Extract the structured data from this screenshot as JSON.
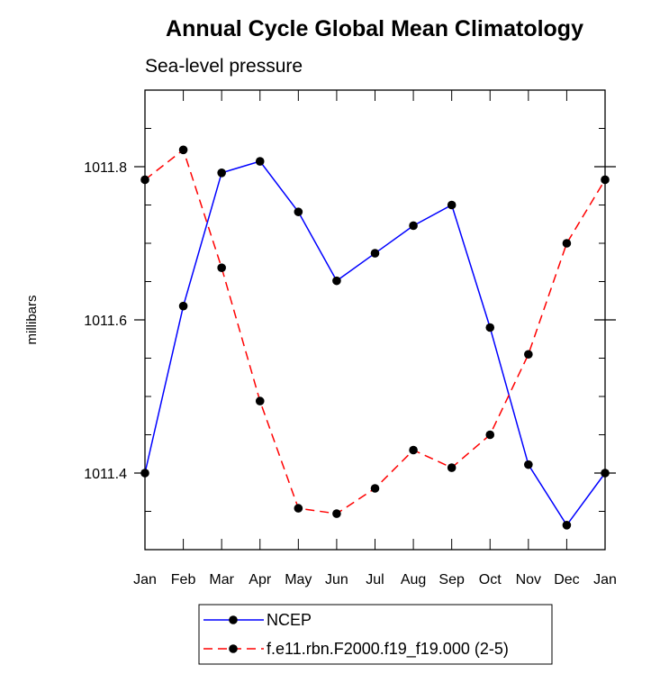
{
  "chart_data": {
    "type": "line",
    "title": "Annual Cycle Global Mean Climatology",
    "subtitle": "Sea-level pressure",
    "ylabel": "millibars",
    "xlabel": "",
    "categories": [
      "Jan",
      "Feb",
      "Mar",
      "Apr",
      "May",
      "Jun",
      "Jul",
      "Aug",
      "Sep",
      "Oct",
      "Nov",
      "Dec",
      "Jan"
    ],
    "ylim": [
      1011.3,
      1011.9
    ],
    "yticks_major": [
      1011.4,
      1011.6,
      1011.8
    ],
    "ytick_labels": [
      "1011.4",
      "1011.6",
      "1011.8"
    ],
    "grid": false,
    "legend_position": "bottom-center",
    "series": [
      {
        "name": "NCEP",
        "color": "#0000ff",
        "dash": "solid",
        "values": [
          1011.4,
          1011.618,
          1011.792,
          1011.807,
          1011.741,
          1011.651,
          1011.687,
          1011.723,
          1011.75,
          1011.59,
          1011.411,
          1011.332,
          1011.4
        ]
      },
      {
        "name": "f.e11.rbn.F2000.f19_f19.000 (2-5)",
        "color": "#ff0000",
        "dash": "dashed",
        "values": [
          1011.783,
          1011.822,
          1011.668,
          1011.494,
          1011.354,
          1011.347,
          1011.38,
          1011.43,
          1011.407,
          1011.45,
          1011.555,
          1011.7,
          1011.783
        ]
      }
    ]
  }
}
